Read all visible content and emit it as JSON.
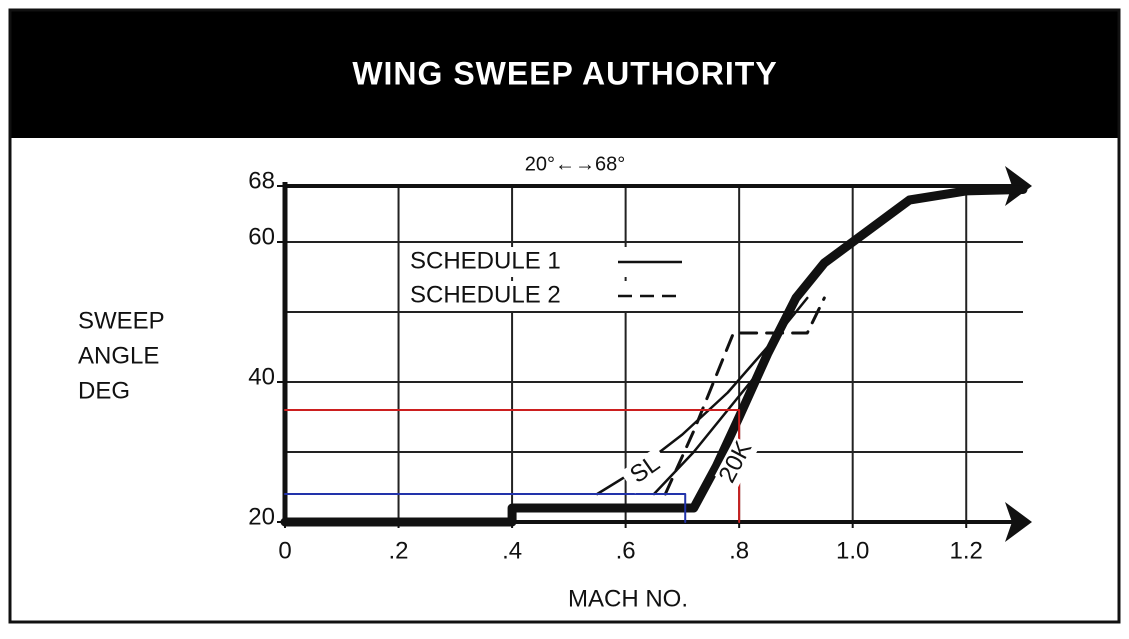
{
  "chart_data": {
    "type": "line",
    "title": "WING SWEEP AUTHORITY",
    "annotation": "20°←→68°",
    "ylabel": [
      "SWEEP",
      "ANGLE",
      "DEG"
    ],
    "xlabel": "MACH NO.",
    "xlim": [
      0,
      1.3
    ],
    "ylim": [
      20,
      68
    ],
    "xticks": [
      0,
      {
        "value": 0.2,
        "label": ".2"
      },
      {
        "value": 0.4,
        "label": ".4"
      },
      {
        "value": 0.6,
        "label": ".6"
      },
      {
        "value": 0.8,
        "label": ".8"
      },
      {
        "value": 1,
        "label": "1.0"
      },
      1.2
    ],
    "yticks": [
      20,
      40,
      60,
      68
    ],
    "xgrid": [
      0.2,
      0.4,
      0.6,
      0.8,
      1,
      1.2
    ],
    "ygrid": [
      30,
      40,
      50,
      60
    ],
    "grid": true,
    "legend": [
      {
        "name": "SCHEDULE 1",
        "dashed": false
      },
      {
        "name": "SCHEDULE 2",
        "dashed": true
      }
    ],
    "series": [
      {
        "color": "#111111",
        "width": 9,
        "dashed": false,
        "x": [
          0,
          0.4,
          0.4,
          0.72,
          0.76,
          0.8,
          0.85,
          0.9,
          0.95,
          1.0,
          1.05,
          1.1,
          1.2,
          1.3
        ],
        "values": [
          20,
          20,
          22,
          22,
          28,
          35,
          44,
          52,
          57,
          60,
          63,
          66,
          67.3,
          67.5
        ]
      },
      {
        "color": "#111111",
        "width": 2.5,
        "dashed": false,
        "label": "20K",
        "x": [
          0.65,
          0.72,
          0.78,
          0.84
        ],
        "values": [
          24,
          30,
          36,
          42
        ]
      },
      {
        "color": "#111111",
        "width": 2.5,
        "dashed": false,
        "label": "SL",
        "x": [
          0.55,
          0.62,
          0.7,
          0.78,
          0.85,
          0.92
        ],
        "values": [
          24,
          27.5,
          32.5,
          38.5,
          45,
          52
        ]
      },
      {
        "color": "#111111",
        "width": 3,
        "dashed": true,
        "x": [
          0.67,
          0.72,
          0.79,
          0.92,
          0.95
        ],
        "values": [
          24,
          33,
          47,
          47,
          52
        ]
      },
      {
        "color": "#cc1f1f",
        "width": 2,
        "dashed": false,
        "x": [
          0,
          0.8,
          0.8
        ],
        "values": [
          36,
          36,
          20
        ]
      },
      {
        "color": "#2233aa",
        "width": 2,
        "dashed": false,
        "x": [
          0,
          0.705,
          0.705
        ],
        "values": [
          24,
          24,
          20
        ]
      }
    ]
  }
}
